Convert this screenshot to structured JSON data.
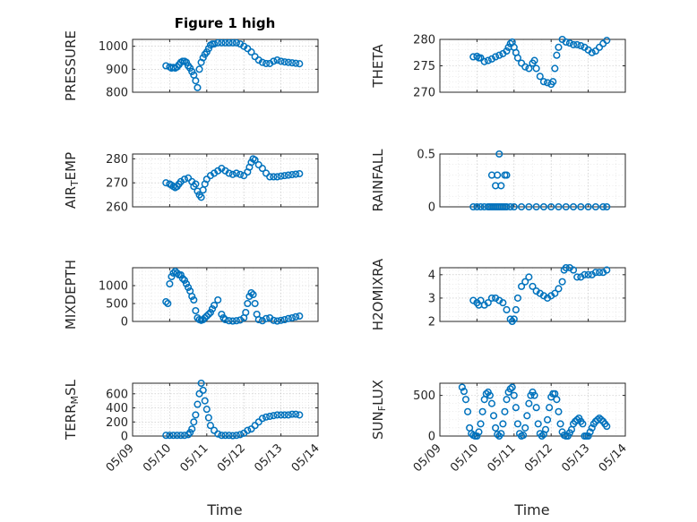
{
  "figure": {
    "title": "Figure 1 high",
    "xlabel": "Time",
    "x_ticks": [
      "05/09",
      "05/10",
      "05/11",
      "05/12",
      "05/13",
      "05/14"
    ],
    "marker_color": "#0072BD"
  },
  "chart_data": [
    {
      "type": "scatter",
      "ylabel": "PRESSURE",
      "xlim": [
        "05/09",
        "05/14"
      ],
      "ylim": [
        800,
        1030
      ],
      "yticks": [
        800,
        900,
        1000
      ],
      "grid": true,
      "x": [
        9.9,
        10.0,
        10.05,
        10.1,
        10.15,
        10.2,
        10.25,
        10.3,
        10.35,
        10.4,
        10.45,
        10.5,
        10.55,
        10.6,
        10.65,
        10.7,
        10.75,
        10.8,
        10.85,
        10.9,
        10.95,
        11.0,
        11.05,
        11.1,
        11.15,
        11.2,
        11.3,
        11.4,
        11.5,
        11.6,
        11.7,
        11.8,
        11.9,
        12.0,
        12.1,
        12.2,
        12.3,
        12.4,
        12.5,
        12.6,
        12.7,
        12.8,
        12.9,
        13.0,
        13.1,
        13.2,
        13.3,
        13.4,
        13.5
      ],
      "y": [
        915,
        910,
        905,
        908,
        905,
        910,
        920,
        930,
        935,
        935,
        930,
        915,
        905,
        890,
        875,
        850,
        820,
        900,
        930,
        950,
        965,
        975,
        990,
        1005,
        1010,
        1010,
        1015,
        1015,
        1015,
        1015,
        1015,
        1015,
        1010,
        1000,
        990,
        975,
        955,
        940,
        930,
        925,
        925,
        935,
        940,
        935,
        932,
        930,
        928,
        926,
        924
      ]
    },
    {
      "type": "scatter",
      "ylabel": "THETA",
      "xlim": [
        "05/09",
        "05/14"
      ],
      "ylim": [
        270,
        280
      ],
      "yticks": [
        270,
        275,
        280
      ],
      "grid": true,
      "x": [
        9.9,
        10.0,
        10.05,
        10.1,
        10.2,
        10.3,
        10.4,
        10.5,
        10.6,
        10.7,
        10.8,
        10.85,
        10.9,
        10.95,
        11.0,
        11.05,
        11.1,
        11.2,
        11.3,
        11.4,
        11.5,
        11.55,
        11.6,
        11.7,
        11.8,
        11.9,
        12.0,
        12.05,
        12.1,
        12.15,
        12.2,
        12.3,
        12.4,
        12.5,
        12.6,
        12.7,
        12.8,
        12.9,
        13.0,
        13.1,
        13.2,
        13.3,
        13.4,
        13.5
      ],
      "y": [
        276.7,
        276.8,
        276.5,
        276.5,
        275.8,
        276.0,
        276.3,
        276.7,
        277.0,
        277.3,
        277.8,
        278.5,
        279.2,
        279.5,
        278.5,
        277.5,
        276.5,
        275.5,
        274.8,
        274.5,
        275.5,
        276.0,
        274.5,
        273.0,
        272.0,
        271.8,
        271.5,
        272.0,
        274.5,
        277.0,
        278.5,
        280.0,
        279.5,
        279.3,
        279.0,
        279.0,
        278.8,
        278.5,
        278.0,
        277.5,
        277.8,
        278.5,
        279.2,
        279.8
      ]
    },
    {
      "type": "scatter",
      "ylabel": "AIR_TEMP",
      "xlim": [
        "05/09",
        "05/14"
      ],
      "ylim": [
        260,
        282
      ],
      "yticks": [
        260,
        270,
        280
      ],
      "grid": true,
      "x": [
        9.9,
        10.0,
        10.05,
        10.1,
        10.15,
        10.2,
        10.25,
        10.3,
        10.4,
        10.5,
        10.6,
        10.65,
        10.7,
        10.75,
        10.8,
        10.85,
        10.9,
        10.95,
        11.0,
        11.1,
        11.2,
        11.3,
        11.4,
        11.5,
        11.6,
        11.7,
        11.8,
        11.9,
        12.0,
        12.1,
        12.15,
        12.2,
        12.25,
        12.3,
        12.4,
        12.5,
        12.6,
        12.7,
        12.8,
        12.9,
        13.0,
        13.1,
        13.2,
        13.3,
        13.4,
        13.5
      ],
      "y": [
        270,
        269.5,
        269,
        268.5,
        268,
        268.5,
        269.5,
        270.5,
        271.5,
        272,
        270.5,
        268.5,
        269.5,
        266.5,
        265,
        264,
        267,
        269.5,
        271.5,
        273,
        274,
        275,
        276,
        275,
        274,
        273.5,
        274,
        273.5,
        273,
        274.5,
        276.5,
        278.5,
        280,
        279.5,
        277.5,
        276,
        274,
        272.5,
        272.5,
        272.5,
        272.8,
        273,
        273.2,
        273.4,
        273.6,
        273.8
      ]
    },
    {
      "type": "scatter",
      "ylabel": "RAINFALL",
      "xlim": [
        "05/09",
        "05/14"
      ],
      "ylim": [
        0,
        0.5
      ],
      "yticks": [
        0,
        0.5
      ],
      "grid": true,
      "x": [
        9.9,
        10.0,
        10.1,
        10.2,
        10.3,
        10.35,
        10.4,
        10.45,
        10.5,
        10.55,
        10.6,
        10.65,
        10.7,
        10.75,
        10.8,
        10.9,
        11.0,
        11.2,
        11.4,
        11.6,
        11.8,
        12.0,
        12.2,
        12.4,
        12.6,
        12.8,
        13.0,
        13.2,
        13.4,
        13.5,
        10.4,
        10.5,
        10.55,
        10.65,
        10.75,
        10.8,
        10.6
      ],
      "y": [
        0,
        0,
        0,
        0,
        0,
        0,
        0,
        0,
        0,
        0,
        0,
        0,
        0,
        0,
        0,
        0,
        0,
        0,
        0,
        0,
        0,
        0,
        0,
        0,
        0,
        0,
        0,
        0,
        0,
        0,
        0.3,
        0.2,
        0.3,
        0.2,
        0.3,
        0.3,
        0.5
      ]
    },
    {
      "type": "scatter",
      "ylabel": "MIXDEPTH",
      "xlim": [
        "05/09",
        "05/14"
      ],
      "ylim": [
        0,
        1500
      ],
      "yticks": [
        0,
        500,
        1000
      ],
      "grid": true,
      "x": [
        9.9,
        9.95,
        10.0,
        10.05,
        10.1,
        10.15,
        10.2,
        10.25,
        10.3,
        10.35,
        10.4,
        10.45,
        10.5,
        10.55,
        10.6,
        10.65,
        10.7,
        10.75,
        10.8,
        10.85,
        10.9,
        10.95,
        11.0,
        11.05,
        11.1,
        11.15,
        11.2,
        11.3,
        11.4,
        11.45,
        11.5,
        11.6,
        11.7,
        11.8,
        11.9,
        12.0,
        12.05,
        12.1,
        12.15,
        12.2,
        12.25,
        12.3,
        12.35,
        12.4,
        12.5,
        12.6,
        12.7,
        12.8,
        12.9,
        13.0,
        13.1,
        13.2,
        13.3,
        13.4,
        13.5
      ],
      "y": [
        550,
        500,
        1050,
        1250,
        1350,
        1400,
        1350,
        1300,
        1300,
        1200,
        1150,
        1050,
        950,
        850,
        700,
        600,
        300,
        100,
        50,
        30,
        50,
        100,
        150,
        200,
        250,
        350,
        450,
        600,
        200,
        100,
        50,
        20,
        10,
        20,
        40,
        100,
        250,
        500,
        700,
        800,
        750,
        500,
        200,
        50,
        20,
        80,
        100,
        30,
        10,
        30,
        50,
        80,
        100,
        130,
        150
      ]
    },
    {
      "type": "scatter",
      "ylabel": "H2OMIXRA",
      "xlim": [
        "05/09",
        "05/14"
      ],
      "ylim": [
        2,
        4.3
      ],
      "yticks": [
        2,
        3,
        4
      ],
      "grid": true,
      "x": [
        9.9,
        10.0,
        10.05,
        10.1,
        10.2,
        10.3,
        10.4,
        10.5,
        10.6,
        10.7,
        10.8,
        10.9,
        10.95,
        11.0,
        11.05,
        11.1,
        11.2,
        11.3,
        11.4,
        11.5,
        11.6,
        11.7,
        11.8,
        11.9,
        12.0,
        12.1,
        12.2,
        12.3,
        12.35,
        12.4,
        12.5,
        12.6,
        12.7,
        12.8,
        12.9,
        13.0,
        13.1,
        13.2,
        13.3,
        13.4,
        13.5
      ],
      "y": [
        2.9,
        2.8,
        2.7,
        2.9,
        2.7,
        2.8,
        3.0,
        3.0,
        2.9,
        2.8,
        2.5,
        2.1,
        2.0,
        2.1,
        2.5,
        3.0,
        3.5,
        3.7,
        3.9,
        3.5,
        3.3,
        3.2,
        3.1,
        3.0,
        3.1,
        3.2,
        3.4,
        3.7,
        4.2,
        4.3,
        4.3,
        4.2,
        3.9,
        3.9,
        4.0,
        4.0,
        4.0,
        4.1,
        4.1,
        4.1,
        4.2
      ]
    },
    {
      "type": "scatter",
      "ylabel": "TERR_MSL",
      "xlim": [
        "05/09",
        "05/14"
      ],
      "ylim": [
        0,
        750
      ],
      "yticks": [
        0,
        200,
        400,
        600
      ],
      "grid": true,
      "x": [
        9.9,
        10.0,
        10.1,
        10.2,
        10.3,
        10.4,
        10.5,
        10.55,
        10.6,
        10.65,
        10.7,
        10.75,
        10.8,
        10.85,
        10.9,
        10.95,
        11.0,
        11.05,
        11.1,
        11.2,
        11.3,
        11.4,
        11.5,
        11.6,
        11.7,
        11.8,
        11.9,
        12.0,
        12.1,
        12.2,
        12.3,
        12.4,
        12.5,
        12.6,
        12.7,
        12.8,
        12.9,
        13.0,
        13.1,
        13.2,
        13.3,
        13.4,
        13.5
      ],
      "y": [
        10,
        10,
        10,
        10,
        10,
        10,
        20,
        50,
        100,
        200,
        300,
        450,
        600,
        750,
        650,
        500,
        380,
        260,
        150,
        80,
        30,
        10,
        10,
        10,
        5,
        10,
        20,
        40,
        80,
        100,
        150,
        200,
        250,
        270,
        280,
        290,
        300,
        300,
        300,
        300,
        310,
        310,
        300
      ]
    },
    {
      "type": "scatter",
      "ylabel": "SUN_FLUX",
      "xlim": [
        "05/09",
        "05/14"
      ],
      "ylim": [
        0,
        650
      ],
      "yticks": [
        0,
        500
      ],
      "grid": true,
      "x": [
        9.6,
        9.65,
        9.7,
        9.75,
        9.8,
        9.85,
        9.9,
        9.95,
        10.0,
        10.05,
        10.1,
        10.15,
        10.2,
        10.25,
        10.3,
        10.35,
        10.4,
        10.45,
        10.5,
        10.55,
        10.6,
        10.65,
        10.7,
        10.75,
        10.8,
        10.85,
        10.9,
        10.95,
        11.0,
        11.05,
        11.1,
        11.15,
        11.2,
        11.25,
        11.3,
        11.35,
        11.4,
        11.45,
        11.5,
        11.55,
        11.6,
        11.65,
        11.7,
        11.75,
        11.8,
        11.85,
        11.9,
        11.95,
        12.0,
        12.05,
        12.1,
        12.15,
        12.2,
        12.25,
        12.3,
        12.35,
        12.4,
        12.45,
        12.5,
        12.55,
        12.6,
        12.65,
        12.7,
        12.75,
        12.8,
        12.85,
        12.9,
        12.95,
        13.0,
        13.05,
        13.1,
        13.15,
        13.2,
        13.25,
        13.3,
        13.35,
        13.4,
        13.45,
        13.5
      ],
      "y": [
        600,
        550,
        450,
        300,
        100,
        30,
        10,
        0,
        0,
        50,
        150,
        300,
        450,
        520,
        540,
        500,
        400,
        250,
        100,
        20,
        0,
        30,
        150,
        300,
        450,
        540,
        580,
        600,
        500,
        350,
        150,
        30,
        0,
        10,
        100,
        250,
        400,
        500,
        540,
        500,
        350,
        150,
        30,
        0,
        20,
        80,
        200,
        350,
        480,
        520,
        520,
        450,
        300,
        150,
        50,
        10,
        0,
        0,
        40,
        80,
        150,
        180,
        200,
        220,
        180,
        150,
        0,
        0,
        0,
        50,
        100,
        150,
        180,
        200,
        220,
        200,
        180,
        150,
        120
      ]
    }
  ]
}
